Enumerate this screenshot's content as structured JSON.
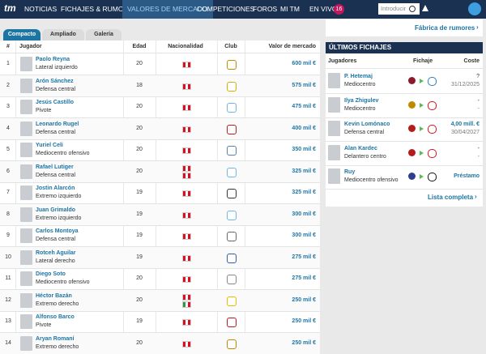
{
  "nav": {
    "logo": "tm",
    "items": [
      "NOTICIAS",
      "FICHAJES & RUMORES",
      "VALORES DE MERCADO",
      "COMPETICIONES",
      "FOROS",
      "MI TM",
      "EN VIVO"
    ],
    "live_count": 16,
    "search_placeholder": "Introducir"
  },
  "tabs": [
    "Compacto",
    "Ampliado",
    "Galería"
  ],
  "table": {
    "columns": [
      "#",
      "Jugador",
      "Edad",
      "Nacionalidad",
      "Club",
      "Valor de mercado"
    ],
    "rows": [
      {
        "rank": 1,
        "name": "Paolo Reyna",
        "position": "Lateral izquierdo",
        "age": 20,
        "value": "600 mil €"
      },
      {
        "rank": 2,
        "name": "Arón Sánchez",
        "position": "Defensa central",
        "age": 18,
        "value": "575 mil €"
      },
      {
        "rank": 3,
        "name": "Jesús Castillo",
        "position": "Pivote",
        "age": 20,
        "value": "475 mil €"
      },
      {
        "rank": 4,
        "name": "Leonardo Rugel",
        "position": "Defensa central",
        "age": 20,
        "value": "400 mil €"
      },
      {
        "rank": 5,
        "name": "Yuriel Celi",
        "position": "Mediocentro ofensivo",
        "age": 20,
        "value": "350 mil €"
      },
      {
        "rank": 6,
        "name": "Rafael Lutiger",
        "position": "Defensa central",
        "age": 20,
        "value": "325 mil €"
      },
      {
        "rank": 7,
        "name": "Jostin Alarcón",
        "position": "Extremo izquierdo",
        "age": 19,
        "value": "325 mil €"
      },
      {
        "rank": 8,
        "name": "Juan Grimaldo",
        "position": "Extremo izquierdo",
        "age": 19,
        "value": "300 mil €"
      },
      {
        "rank": 9,
        "name": "Carlos Montoya",
        "position": "Defensa central",
        "age": 19,
        "value": "300 mil €"
      },
      {
        "rank": 10,
        "name": "Rotceh Aguilar",
        "position": "Lateral derecho",
        "age": 19,
        "value": "275 mil €"
      },
      {
        "rank": 11,
        "name": "Diego Soto",
        "position": "Mediocentro ofensivo",
        "age": 20,
        "value": "275 mil €"
      },
      {
        "rank": 12,
        "name": "Héctor Bazán",
        "position": "Extremo derecho",
        "age": 20,
        "value": "250 mil €"
      },
      {
        "rank": 13,
        "name": "Alfonso Barco",
        "position": "Pivote",
        "age": 19,
        "value": "250 mil €"
      },
      {
        "rank": 14,
        "name": "Aryan Romaní",
        "position": "Extremo derecho",
        "age": 20,
        "value": "250 mil €"
      }
    ]
  },
  "rumors_link": "Fábrica de rumores",
  "transfers": {
    "title": "ÚLTIMOS FICHAJES",
    "columns": [
      "Jugadores",
      "Fichaje",
      "Coste"
    ],
    "rows": [
      {
        "name": "P. Hetemaj",
        "position": "Mediocentro",
        "fee": "?",
        "date": "31/12/2025"
      },
      {
        "name": "Ilya Zhigulev",
        "position": "Mediocentro",
        "fee": "-",
        "date": "-"
      },
      {
        "name": "Kevin Lomónaco",
        "position": "Defensa central",
        "fee": "4,00 mill. €",
        "date": "30/04/2027"
      },
      {
        "name": "Alan Kardec",
        "position": "Delantero centro",
        "fee": "-",
        "date": "-"
      },
      {
        "name": "Ruy",
        "position": "Mediocentro ofensivo",
        "fee": "Préstamo"
      }
    ],
    "more": "Lista completa"
  }
}
